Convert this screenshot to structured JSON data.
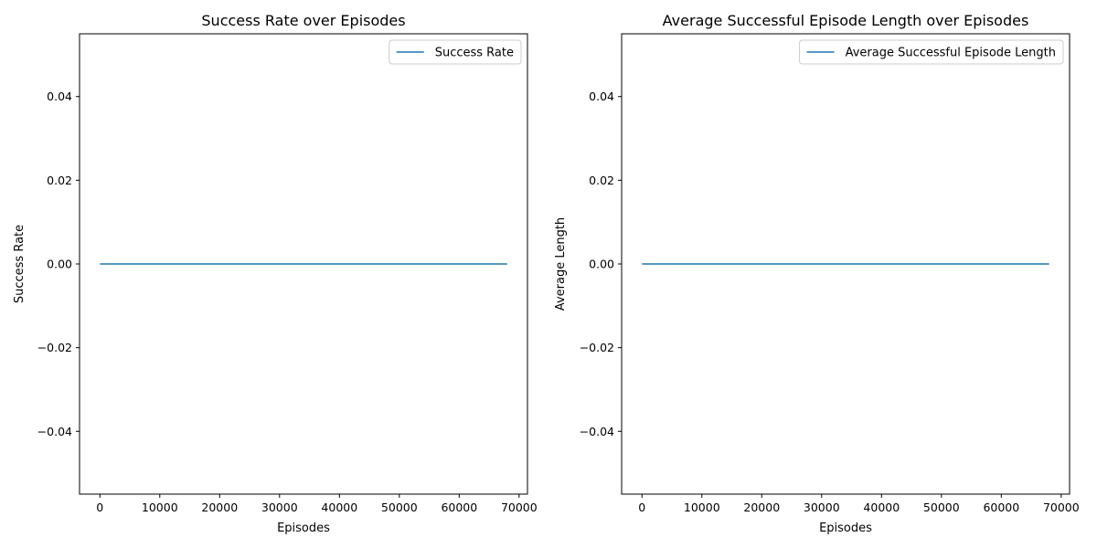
{
  "chart_data": [
    {
      "type": "line",
      "title": "Success Rate over Episodes",
      "xlabel": "Episodes",
      "ylabel": "Success Rate",
      "xlim": [
        -3400,
        71400
      ],
      "ylim": [
        -0.055,
        0.055
      ],
      "xticks": [
        0,
        10000,
        20000,
        30000,
        40000,
        50000,
        60000,
        70000
      ],
      "xtick_labels": [
        "0",
        "10000",
        "20000",
        "30000",
        "40000",
        "50000",
        "60000",
        "70000"
      ],
      "yticks": [
        -0.04,
        -0.02,
        0.0,
        0.02,
        0.04
      ],
      "ytick_labels": [
        "−0.04",
        "−0.02",
        "0.00",
        "0.02",
        "0.04"
      ],
      "grid": false,
      "legend_position": "top-right",
      "color": "#1f77b4",
      "series": [
        {
          "name": "Success Rate",
          "x": [
            0,
            68000
          ],
          "y": [
            0.0,
            0.0
          ]
        }
      ]
    },
    {
      "type": "line",
      "title": "Average Successful Episode Length over Episodes",
      "xlabel": "Episodes",
      "ylabel": "Average Length",
      "xlim": [
        -3400,
        71400
      ],
      "ylim": [
        -0.055,
        0.055
      ],
      "xticks": [
        0,
        10000,
        20000,
        30000,
        40000,
        50000,
        60000,
        70000
      ],
      "xtick_labels": [
        "0",
        "10000",
        "20000",
        "30000",
        "40000",
        "50000",
        "60000",
        "70000"
      ],
      "yticks": [
        -0.04,
        -0.02,
        0.0,
        0.02,
        0.04
      ],
      "ytick_labels": [
        "−0.04",
        "−0.02",
        "0.00",
        "0.02",
        "0.04"
      ],
      "grid": false,
      "legend_position": "top-right",
      "color": "#1f77b4",
      "series": [
        {
          "name": "Average Successful Episode Length",
          "x": [
            0,
            68000
          ],
          "y": [
            0.0,
            0.0
          ]
        }
      ]
    }
  ]
}
